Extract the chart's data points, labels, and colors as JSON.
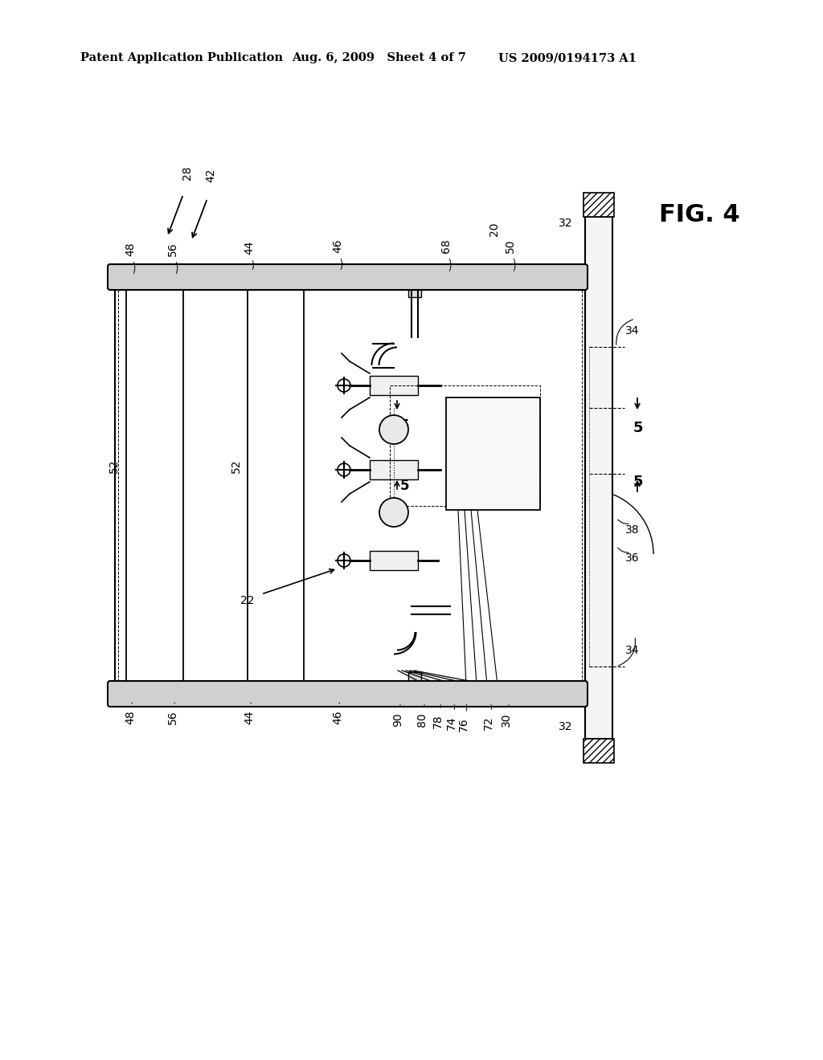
{
  "bg_color": "#ffffff",
  "header_left": "Patent Application Publication",
  "header_center": "Aug. 6, 2009   Sheet 4 of 7",
  "header_right": "US 2009/0194173 A1",
  "fig_label": "FIG. 4",
  "line_color": "#000000",
  "gray_fill": "#d0d0d0",
  "light_gray": "#eeeeee",
  "header_fontsize": 10.5,
  "ref_fontsize": 10,
  "fig_fontsize": 22
}
